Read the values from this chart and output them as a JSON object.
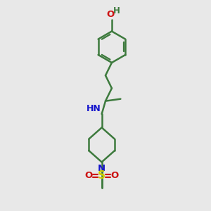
{
  "bg_color": "#e8e8e8",
  "bond_color": "#3d7a3d",
  "bond_width": 1.8,
  "N_color": "#1414cc",
  "O_color": "#cc1414",
  "S_color": "#cccc00",
  "font_size": 8.5,
  "fig_size": [
    3.0,
    3.0
  ],
  "dpi": 100,
  "xlim": [
    0,
    10
  ],
  "ylim": [
    0,
    10
  ]
}
